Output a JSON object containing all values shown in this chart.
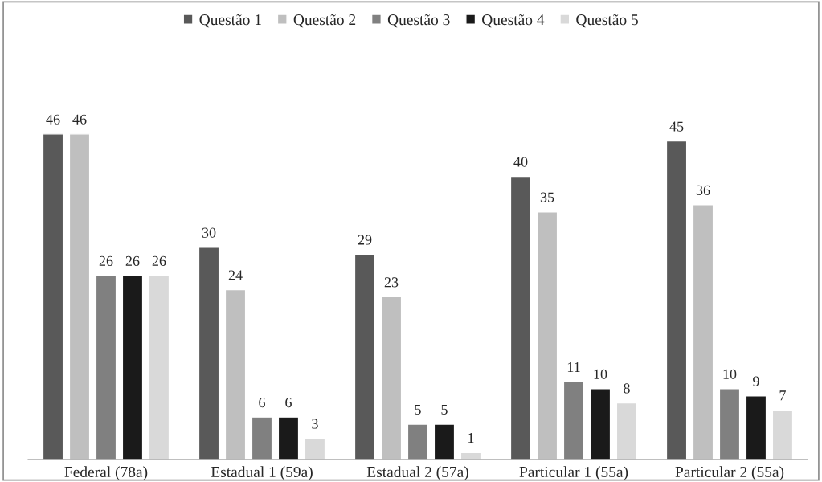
{
  "chart_data": {
    "type": "bar",
    "categories": [
      "Federal (78a)",
      "Estadual 1 (59a)",
      "Estadual 2 (57a)",
      "Particular 1 (55a)",
      "Particular 2 (55a)"
    ],
    "series": [
      {
        "name": "Questão 1",
        "color": "#595959",
        "values": [
          46,
          30,
          29,
          40,
          45
        ]
      },
      {
        "name": "Questão 2",
        "color": "#bfbfbf",
        "values": [
          46,
          24,
          23,
          35,
          36
        ]
      },
      {
        "name": "Questão 3",
        "color": "#808080",
        "values": [
          26,
          6,
          5,
          11,
          10
        ]
      },
      {
        "name": "Questão 4",
        "color": "#1a1a1a",
        "values": [
          26,
          6,
          5,
          10,
          9
        ]
      },
      {
        "name": "Questão 5",
        "color": "#d9d9d9",
        "values": [
          26,
          3,
          1,
          8,
          7
        ]
      }
    ],
    "data_labels": true,
    "legend": "top",
    "grid": false
  }
}
